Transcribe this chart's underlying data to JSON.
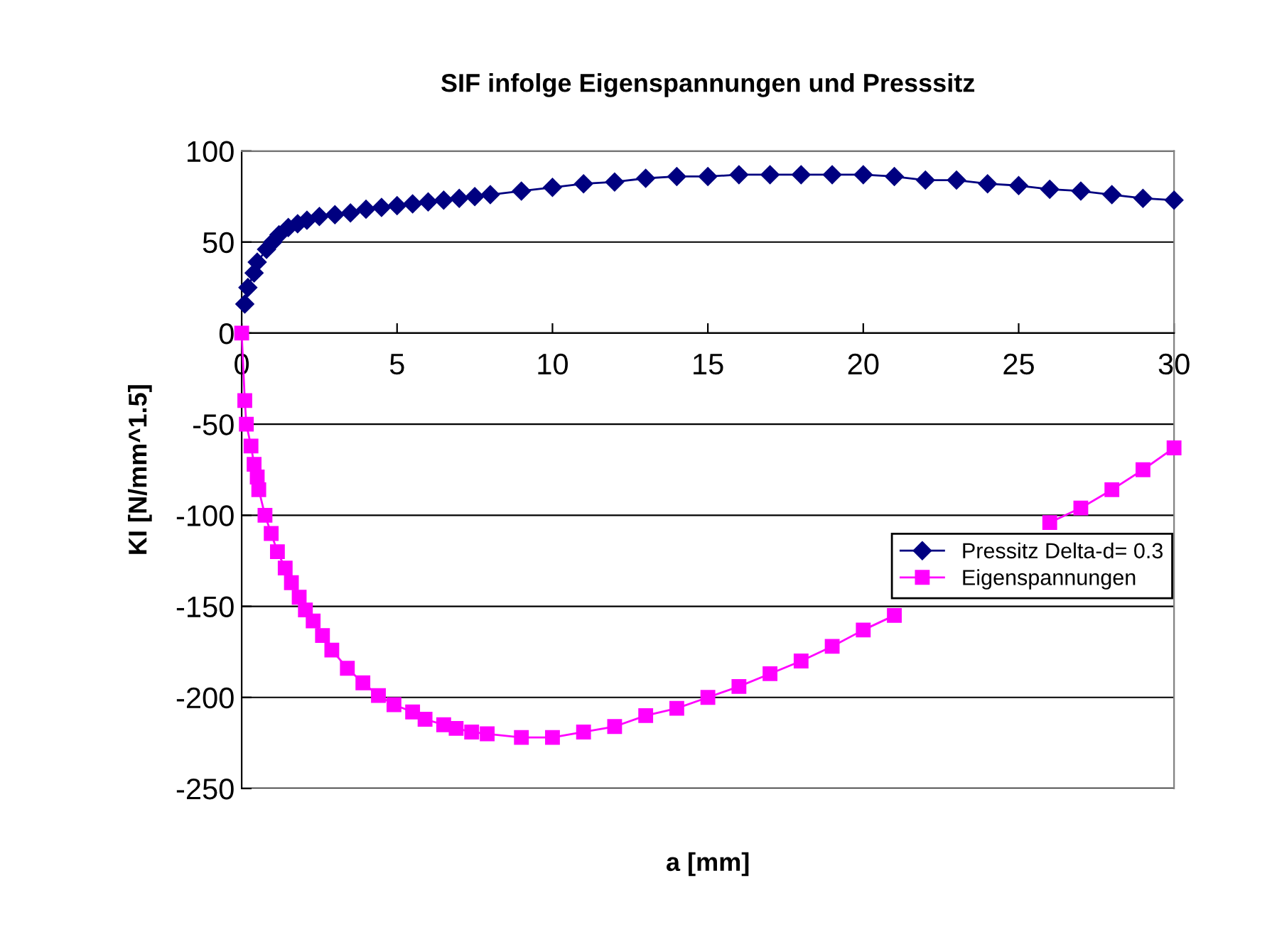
{
  "chart_data": {
    "type": "line",
    "title": "SIF infolge Eigenspannungen und Presssitz",
    "xlabel": "a [mm]",
    "ylabel": "KI [N/mm^1.5]",
    "xlim": [
      0,
      30
    ],
    "xticks": [
      0,
      5,
      10,
      15,
      20,
      25,
      30
    ],
    "ylim": [
      -250,
      100
    ],
    "yticks": [
      -250,
      -200,
      -150,
      -100,
      -50,
      0,
      50,
      100
    ],
    "grid": "y",
    "legend": "center right",
    "series": [
      {
        "name": "Pressitz Delta-d= 0.3",
        "color": "#000080",
        "marker": "diamond",
        "x": [
          0.1,
          0.2,
          0.4,
          0.5,
          0.8,
          1.0,
          1.2,
          1.5,
          1.8,
          2.1,
          2.5,
          3.0,
          3.5,
          4.0,
          4.5,
          5.0,
          5.5,
          6.0,
          6.5,
          7.0,
          7.5,
          8.0,
          9,
          10,
          11,
          12,
          13,
          14,
          15,
          16,
          17,
          18,
          19,
          20,
          21,
          22,
          23,
          24,
          25,
          26,
          27,
          28,
          29,
          30
        ],
        "values": [
          16,
          25,
          33,
          39,
          46,
          50,
          54,
          58,
          60,
          62,
          64,
          65,
          66,
          68,
          69,
          70,
          71,
          72,
          73,
          74,
          75,
          76,
          78,
          80,
          82,
          83,
          85,
          86,
          86,
          87,
          87,
          87,
          87,
          87,
          86,
          84,
          84,
          82,
          81,
          79,
          78,
          76,
          74,
          73
        ]
      },
      {
        "name": "Eigenspannungen",
        "color": "#ff00ff",
        "marker": "square",
        "x": [
          0,
          0.1,
          0.15,
          0.3,
          0.4,
          0.5,
          0.55,
          0.75,
          0.95,
          1.15,
          1.4,
          1.6,
          1.85,
          2.05,
          2.3,
          2.6,
          2.9,
          3.4,
          3.9,
          4.4,
          4.9,
          5.5,
          5.9,
          6.5,
          6.9,
          7.4,
          7.9,
          9,
          10,
          11,
          12,
          13,
          14,
          15,
          16,
          17,
          18,
          19,
          20,
          21,
          22,
          23,
          24,
          25,
          26,
          27,
          28,
          29,
          30
        ],
        "values": [
          0,
          -37,
          -50,
          -62,
          -72,
          -79,
          -86,
          -100,
          -110,
          -120,
          -129,
          -137,
          -145,
          -152,
          -158,
          -166,
          -174,
          -184,
          -192,
          -199,
          -204,
          -208,
          -212,
          -215,
          -217,
          -219,
          -220,
          -222,
          -222,
          -219,
          -216,
          -210,
          -206,
          -200,
          -194,
          -187,
          -180,
          -172,
          -163,
          -155,
          null,
          null,
          null,
          null,
          -104,
          -96,
          -86,
          -75,
          -63
        ]
      }
    ]
  }
}
